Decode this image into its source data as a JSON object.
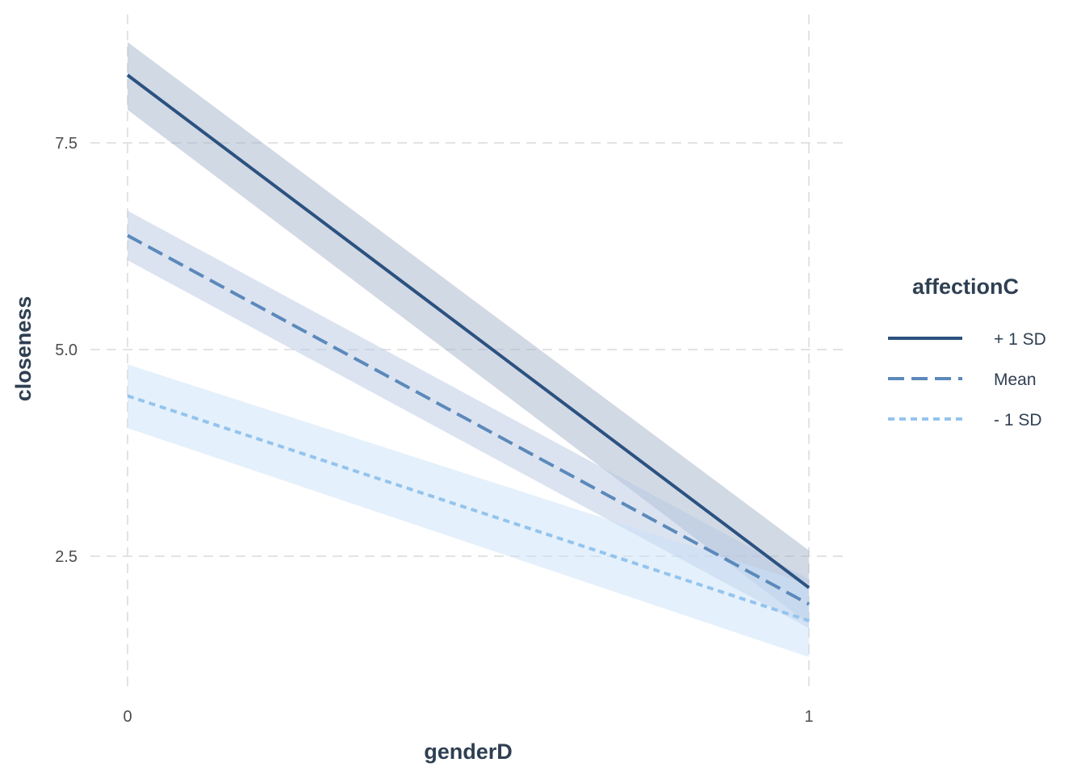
{
  "chart_data": {
    "type": "line",
    "xlabel": "genderD",
    "ylabel": "closeness",
    "x": [
      0,
      1
    ],
    "x_ticks": [
      0,
      1
    ],
    "x_tick_labels": [
      "0",
      "1"
    ],
    "y_ticks": [
      2.5,
      5.0,
      7.5
    ],
    "y_tick_labels": [
      "2.5",
      "5.0",
      "7.5"
    ],
    "xlim": [
      0,
      1.05
    ],
    "ylim": [
      0.8,
      9.1
    ],
    "grid": true,
    "legend": {
      "title": "affectionC",
      "position": "right"
    },
    "series": [
      {
        "name": "+ 1 SD",
        "values": [
          8.32,
          2.12
        ],
        "ci_lower": [
          7.9,
          1.68
        ],
        "ci_upper": [
          8.72,
          2.57
        ],
        "line_style": "solid",
        "color": "#2b5280",
        "band_color": "#a3b4cb"
      },
      {
        "name": "Mean",
        "values": [
          6.38,
          1.92
        ],
        "ci_lower": [
          6.08,
          1.63
        ],
        "ci_upper": [
          6.68,
          2.22
        ],
        "line_style": "dashed",
        "color": "#5b89bb",
        "band_color": "#b8c8e3"
      },
      {
        "name": "- 1 SD",
        "values": [
          4.44,
          1.72
        ],
        "ci_lower": [
          4.05,
          1.28
        ],
        "ci_upper": [
          4.82,
          2.16
        ],
        "line_style": "dotted",
        "color": "#93c4ee",
        "band_color": "#c9e2f8"
      }
    ]
  }
}
